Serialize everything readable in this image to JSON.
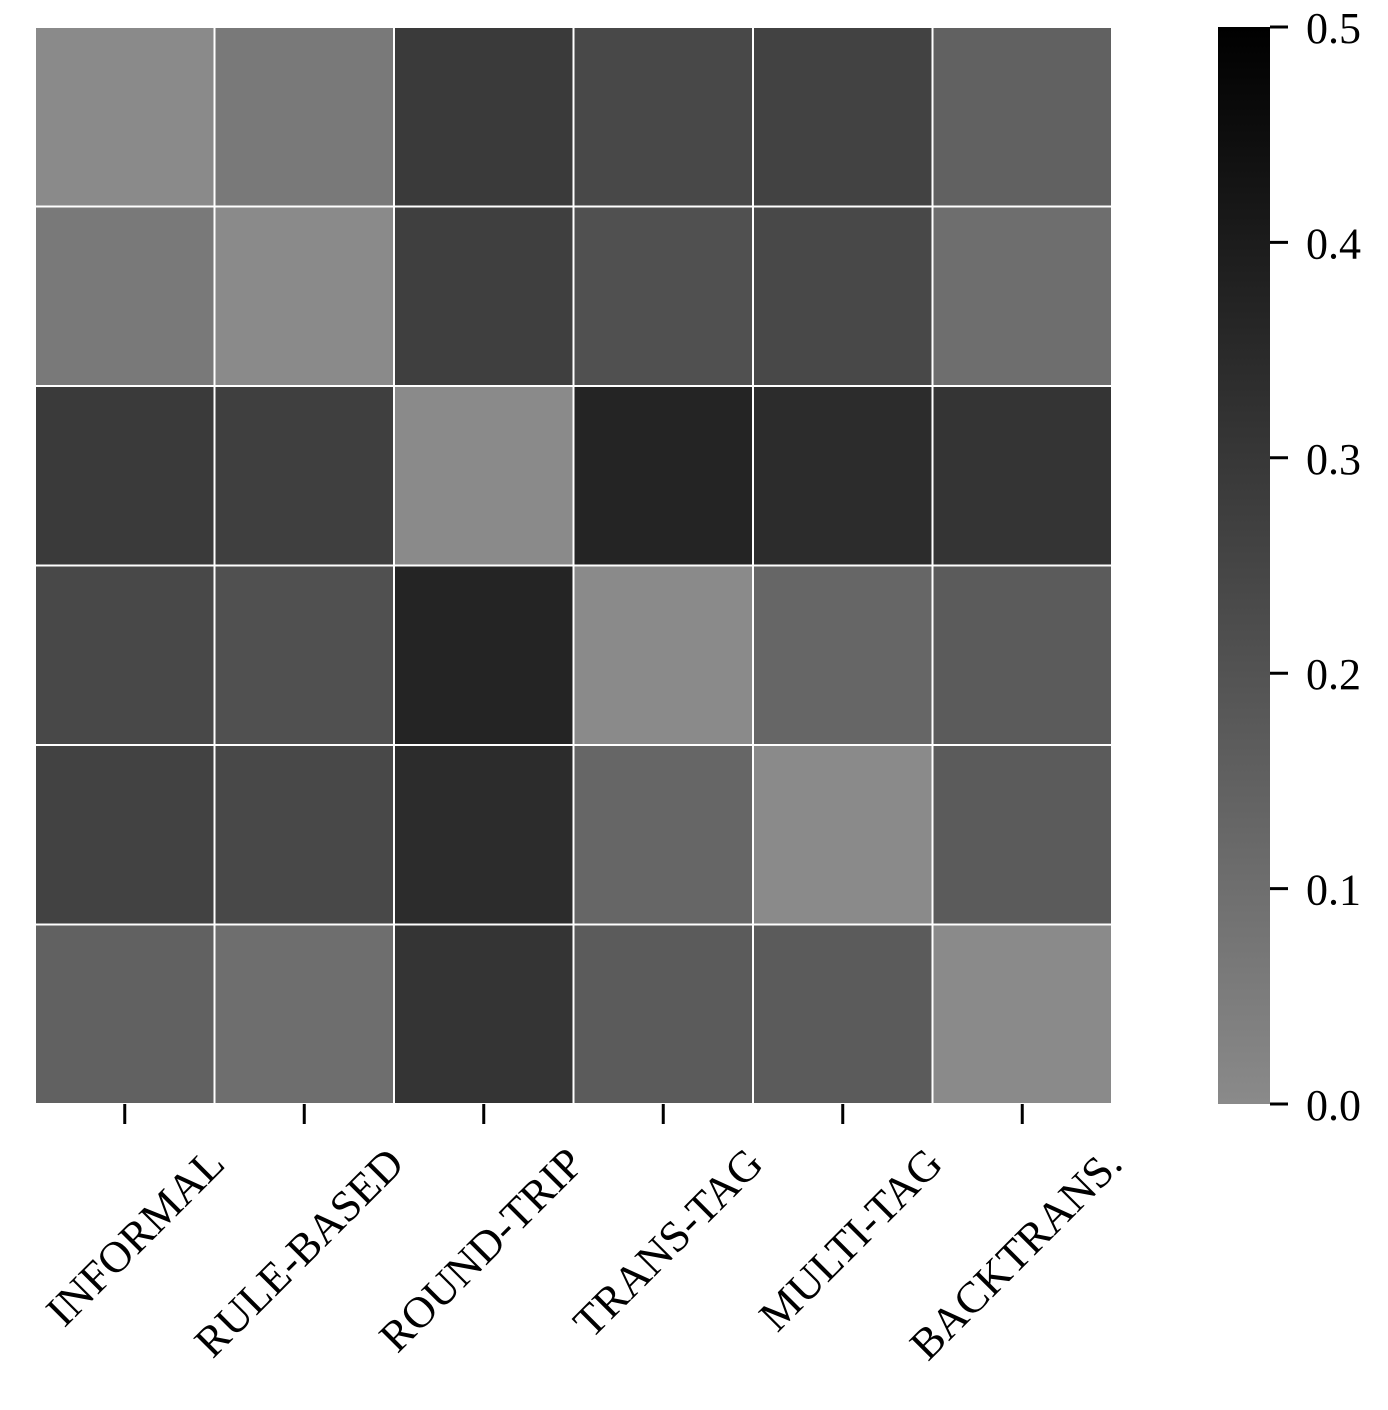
{
  "chart_data": {
    "type": "heatmap",
    "title": "",
    "xlabel": "",
    "ylabel": "",
    "x_categories": [
      "INFORMAL",
      "RULE-BASED",
      "ROUND-TRIP",
      "TRANS-TAG",
      "MULTI-TAG",
      "BACKTRANS."
    ],
    "y_categories": [],
    "values": [
      [
        0.0,
        0.06,
        0.29,
        0.24,
        0.26,
        0.15
      ],
      [
        0.06,
        0.0,
        0.27,
        0.21,
        0.24,
        0.1
      ],
      [
        0.29,
        0.27,
        0.0,
        0.37,
        0.34,
        0.31
      ],
      [
        0.24,
        0.21,
        0.37,
        0.0,
        0.13,
        0.17
      ],
      [
        0.26,
        0.24,
        0.34,
        0.13,
        0.0,
        0.17
      ],
      [
        0.15,
        0.1,
        0.31,
        0.17,
        0.17,
        0.0
      ]
    ],
    "colorbar": {
      "range": [
        0.0,
        0.5
      ],
      "ticks": [
        "0.0",
        "0.1",
        "0.2",
        "0.3",
        "0.4",
        "0.5"
      ],
      "colors": {
        "low": "#8a8a8a",
        "high": "#000000"
      }
    },
    "grid_line_color": "#ffffff",
    "legend": "colorbar-right"
  }
}
